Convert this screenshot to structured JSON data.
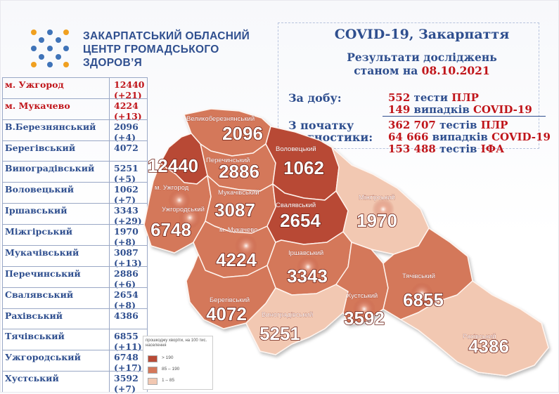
{
  "org": {
    "line1": "ЗАКАРПАТСЬКИЙ ОБЛАСНИЙ",
    "line2": "ЦЕНТР ГРОМАДСЬКОГО",
    "line3": "ЗДОРОВ’Я"
  },
  "header": {
    "title": "COVID-19, Закарпаття",
    "subtitle_line1": "Результати досліджень",
    "subtitle_prefix": "станом на",
    "date": "08.10.2021"
  },
  "daily": {
    "label": "За добу:",
    "tests_num": "552",
    "tests_txt": "тести",
    "tests_hl": "ПЛР",
    "cases_num": "149",
    "cases_txt": "випадків",
    "cases_hl": "COVID-19"
  },
  "total": {
    "label1": "З початку",
    "label2": "діагностики:",
    "pcr_num": "362 707",
    "pcr_txt": "тестів",
    "pcr_hl": "ПЛР",
    "cases_num": "64 666",
    "cases_txt": "випадків",
    "cases_hl": "COVID-19",
    "ifa_num": "153 488",
    "ifa_txt": "тестів",
    "ifa_hl": "ІФА"
  },
  "table": [
    {
      "name": "м. Ужгород",
      "total": "12440",
      "delta": "(+21)",
      "red": true
    },
    {
      "name": "м. Мукачево",
      "total": "4224",
      "delta": "(+13)",
      "red": true
    },
    {
      "name": "В.Березнянський",
      "total": "2096",
      "delta": "(+4)",
      "red": false
    },
    {
      "name": "Берегівський",
      "total": "4072",
      "delta": "",
      "red": false
    },
    {
      "name": "Виноградівський",
      "total": "5251",
      "delta": "(+5)",
      "red": false
    },
    {
      "name": "Воловецький",
      "total": "1062",
      "delta": "(+7)",
      "red": false
    },
    {
      "name": "Іршавський",
      "total": "3343",
      "delta": "(+29)",
      "red": false
    },
    {
      "name": "Міжгірський",
      "total": "1970",
      "delta": "(+8)",
      "red": false
    },
    {
      "name": "Мукачівський",
      "total": "3087",
      "delta": "(+13)",
      "red": false
    },
    {
      "name": "Перечинський",
      "total": "2886",
      "delta": "(+6)",
      "red": false
    },
    {
      "name": "Свалявський",
      "total": "2654",
      "delta": "(+8)",
      "red": false
    },
    {
      "name": "Рахівський",
      "total": "4386",
      "delta": "",
      "red": false
    },
    {
      "name": "Тячівський",
      "total": "6855",
      "delta": "(+11)",
      "red": false
    },
    {
      "name": "Ужгородський",
      "total": "6748",
      "delta": "(+17)",
      "red": false
    },
    {
      "name": "Хустський",
      "total": "3592",
      "delta": "(+7)",
      "red": false
    }
  ],
  "map": {
    "districts": [
      {
        "name": "Великоберезнянський",
        "value": "2096",
        "color": "#d4785a"
      },
      {
        "name": "Перечинський",
        "value": "2886",
        "color": "#d4785a"
      },
      {
        "name": "Воловецький",
        "value": "1062",
        "color": "#b84a36"
      },
      {
        "name": "м. Ужгород",
        "value": "12440",
        "color": "#b84a36"
      },
      {
        "name": "Ужгородський",
        "value": "6748",
        "color": "#d4785a"
      },
      {
        "name": "Мукачівський",
        "value": "3087",
        "color": "#d4785a"
      },
      {
        "name": "м. Мукачево",
        "value": "4224",
        "color": "#d4785a"
      },
      {
        "name": "Свалявський",
        "value": "2654",
        "color": "#b84a36"
      },
      {
        "name": "Міжгірський",
        "value": "1970",
        "color": "#f2c8b2"
      },
      {
        "name": "Іршавський",
        "value": "3343",
        "color": "#d4785a"
      },
      {
        "name": "Берегівський",
        "value": "4072",
        "color": "#d4785a"
      },
      {
        "name": "Виноградівський",
        "value": "5251",
        "color": "#f2c8b2"
      },
      {
        "name": "Хустський",
        "value": "3592",
        "color": "#d4785a"
      },
      {
        "name": "Тячівський",
        "value": "6855",
        "color": "#d4785a"
      },
      {
        "name": "Рахівський",
        "value": "4386",
        "color": "#f2c8b2"
      }
    ]
  },
  "legend": {
    "title": "прошкоджу хворіти, на 100 тис. населення",
    "items": [
      {
        "label": "> 190",
        "color": "#b84a36"
      },
      {
        "label": "85 – 190",
        "color": "#d4785a"
      },
      {
        "label": "1 – 85",
        "color": "#f2c8b2"
      }
    ]
  }
}
